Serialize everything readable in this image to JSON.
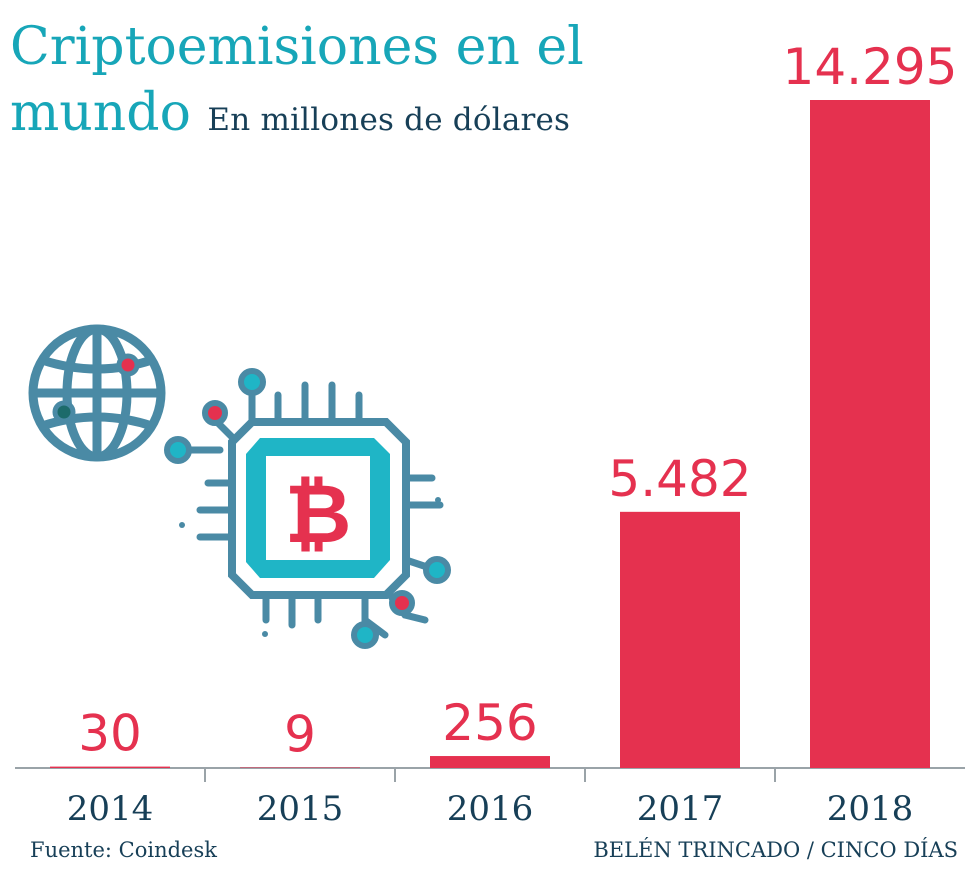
{
  "chart_data": {
    "type": "bar",
    "title": "Criptoemisiones en el mundo",
    "subtitle": "En millones de dólares",
    "categories": [
      "2014",
      "2015",
      "2016",
      "2017",
      "2018"
    ],
    "values": [
      30,
      9,
      256,
      5482,
      14295
    ],
    "value_labels": [
      "30",
      "9",
      "256",
      "5.482",
      "14.295"
    ],
    "xlabel": "",
    "ylabel": "",
    "ylim": [
      0,
      14295
    ],
    "grid": false,
    "legend": "none",
    "bar_color": "#e5314f",
    "text_color": "#173f57",
    "title_color": "#17a6b8"
  },
  "footer": {
    "source": "Fuente: Coindesk",
    "credit": "BELÉN TRINCADO / CINCO DÍAS"
  },
  "illustration": {
    "icons": [
      "globe-icon",
      "bitcoin-chip-icon"
    ],
    "colors": {
      "line": "#4a8aa5",
      "accent": "#1fb5c6",
      "dot": "#e5314f"
    }
  }
}
